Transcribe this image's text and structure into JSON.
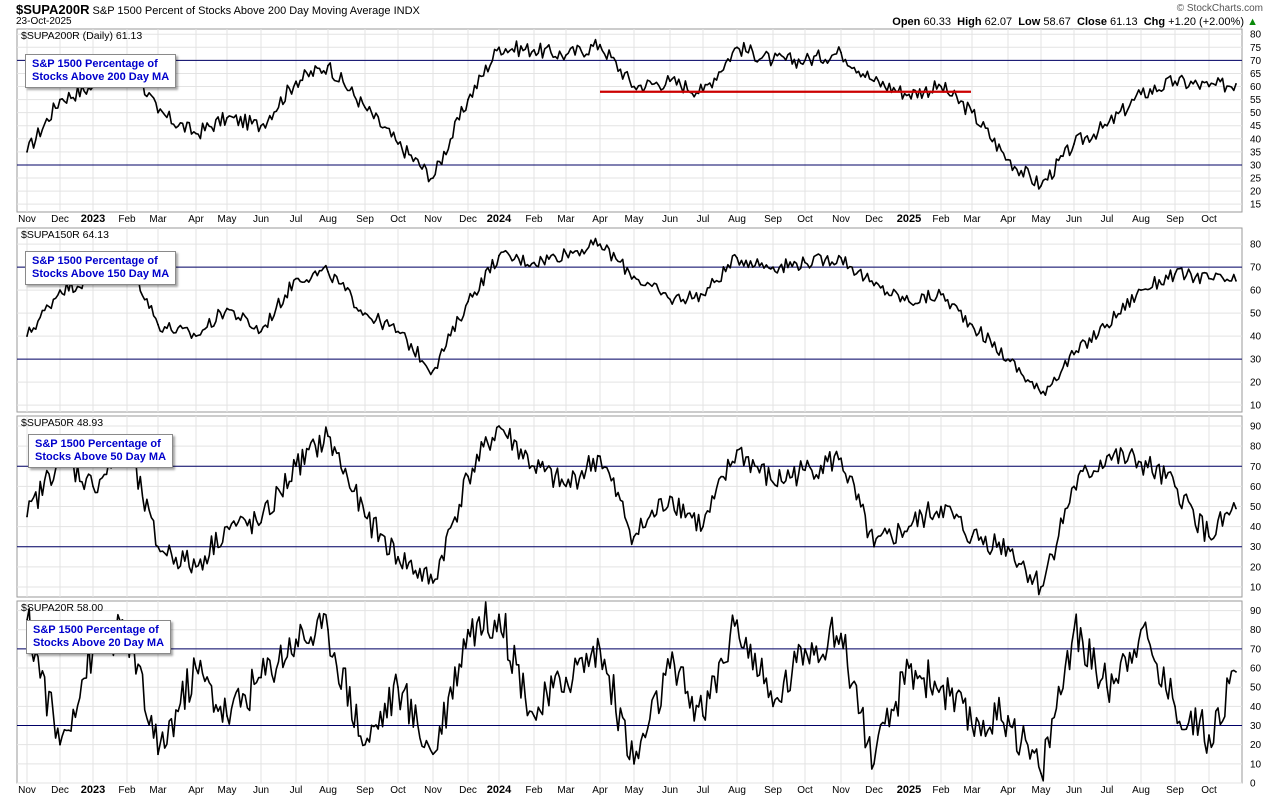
{
  "header": {
    "symbol": "$SUPA200R",
    "description": "S&P 1500 Percent of Stocks Above 200 Day Moving Average",
    "exchange": "INDX",
    "date": "23-Oct-2025",
    "watermark": "© StockCharts.com",
    "open_label": "Open",
    "open": "60.33",
    "high_label": "High",
    "high": "62.07",
    "low_label": "Low",
    "low": "58.67",
    "close_label": "Close",
    "close": "61.13",
    "chg_label": "Chg",
    "chg": "+1.20 (+2.00%)",
    "chg_arrow": "▲"
  },
  "colors": {
    "line": "#000000",
    "reference": "#000066",
    "support": "#cc0000",
    "grid": "#e3e3e3",
    "legend_text": "#0000cc"
  },
  "x_axis_labels": [
    "Nov",
    "Dec",
    "2023",
    "Feb",
    "Mar",
    "Apr",
    "May",
    "Jun",
    "Jul",
    "Aug",
    "Sep",
    "Oct",
    "Nov",
    "Dec",
    "2024",
    "Feb",
    "Mar",
    "Apr",
    "May",
    "Jun",
    "Jul",
    "Aug",
    "Sep",
    "Oct",
    "Nov",
    "Dec",
    "2025",
    "Feb",
    "Mar",
    "Apr",
    "May",
    "Jun",
    "Jul",
    "Aug",
    "Sep",
    "Oct"
  ],
  "chart_data": [
    {
      "type": "line",
      "title": "$SUPA200R (Daily) 61.13",
      "legend": [
        "S&P 1500 Percentage of",
        "Stocks Above 200 Day MA"
      ],
      "ylim": [
        12,
        82
      ],
      "yticks": [
        15,
        20,
        25,
        30,
        35,
        40,
        45,
        50,
        55,
        60,
        65,
        70,
        75,
        80
      ],
      "reference_lines": [
        30,
        70
      ],
      "support_line": {
        "from": "Apr 2024",
        "to": "Feb 2025",
        "value": 58
      },
      "x": [
        "Nov 2022",
        "Dec 2022",
        "Jan 2023",
        "Feb 2023",
        "Mar 2023",
        "Apr 2023",
        "May 2023",
        "Jun 2023",
        "Jul 2023",
        "Aug 2023",
        "Sep 2023",
        "Oct 2023",
        "Nov 2023",
        "Dec 2023",
        "Jan 2024",
        "Feb 2024",
        "Mar 2024",
        "Apr 2024",
        "May 2024",
        "Jun 2024",
        "Jul 2024",
        "Aug 2024",
        "Sep 2024",
        "Oct 2024",
        "Nov 2024",
        "Dec 2024",
        "Jan 2025",
        "Feb 2025",
        "Mar 2025",
        "Apr 2025",
        "May 2025",
        "Jun 2025",
        "Jul 2025",
        "Aug 2025",
        "Sep 2025",
        "Oct 2025",
        "23 Oct 2025"
      ],
      "values": [
        35,
        55,
        60,
        72,
        50,
        42,
        48,
        45,
        62,
        68,
        52,
        38,
        25,
        55,
        75,
        74,
        72,
        76,
        60,
        62,
        58,
        75,
        70,
        70,
        73,
        62,
        57,
        60,
        50,
        32,
        22,
        38,
        45,
        57,
        62,
        60,
        61
      ]
    },
    {
      "type": "line",
      "title": "$SUPA150R 64.13",
      "legend": [
        "S&P 1500 Percentage of",
        "Stocks Above 150 Day MA"
      ],
      "ylim": [
        7,
        87
      ],
      "yticks": [
        10,
        20,
        30,
        40,
        50,
        60,
        70,
        80
      ],
      "reference_lines": [
        30,
        70
      ],
      "x": [
        "Nov 2022",
        "Dec 2022",
        "Jan 2023",
        "Feb 2023",
        "Mar 2023",
        "Apr 2023",
        "May 2023",
        "Jun 2023",
        "Jul 2023",
        "Aug 2023",
        "Sep 2023",
        "Oct 2023",
        "Nov 2023",
        "Dec 2023",
        "Jan 2024",
        "Feb 2024",
        "Mar 2024",
        "Apr 2024",
        "May 2024",
        "Jun 2024",
        "Jul 2024",
        "Aug 2024",
        "Sep 2024",
        "Oct 2024",
        "Nov 2024",
        "Dec 2024",
        "Jan 2025",
        "Feb 2025",
        "Mar 2025",
        "Apr 2025",
        "May 2025",
        "Jun 2025",
        "Jul 2025",
        "Aug 2025",
        "Sep 2025",
        "Oct 2025",
        "23 Oct 2025"
      ],
      "values": [
        40,
        60,
        65,
        75,
        45,
        40,
        52,
        42,
        65,
        68,
        50,
        42,
        25,
        55,
        75,
        72,
        76,
        80,
        66,
        56,
        58,
        74,
        70,
        72,
        74,
        62,
        55,
        58,
        45,
        30,
        15,
        32,
        45,
        60,
        67,
        65,
        64
      ]
    },
    {
      "type": "line",
      "title": "$SUPA50R 48.93",
      "legend": [
        "S&P 1500 Percentage of",
        "Stocks Above 50 Day MA"
      ],
      "ylim": [
        5,
        95
      ],
      "yticks": [
        10,
        20,
        30,
        40,
        50,
        60,
        70,
        80,
        90
      ],
      "reference_lines": [
        30,
        70
      ],
      "x": [
        "Nov 2022",
        "Dec 2022",
        "Jan 2023",
        "Feb 2023",
        "Mar 2023",
        "Apr 2023",
        "May 2023",
        "Jun 2023",
        "Jul 2023",
        "Aug 2023",
        "Sep 2023",
        "Oct 2023",
        "Nov 2023",
        "Dec 2023",
        "Jan 2024",
        "Feb 2024",
        "Mar 2024",
        "Apr 2024",
        "May 2024",
        "Jun 2024",
        "Jul 2024",
        "Aug 2024",
        "Sep 2024",
        "Oct 2024",
        "Nov 2024",
        "Dec 2024",
        "Jan 2025",
        "Feb 2025",
        "Mar 2025",
        "Apr 2025",
        "May 2025",
        "Jun 2025",
        "Jul 2025",
        "Aug 2025",
        "Sep 2025",
        "Oct 2025",
        "23 Oct 2025"
      ],
      "values": [
        45,
        75,
        60,
        80,
        30,
        20,
        40,
        42,
        70,
        85,
        45,
        25,
        12,
        65,
        90,
        70,
        60,
        75,
        35,
        55,
        40,
        78,
        62,
        68,
        74,
        30,
        40,
        50,
        35,
        30,
        10,
        60,
        75,
        72,
        60,
        35,
        49
      ]
    },
    {
      "type": "line",
      "title": "$SUPA20R 58.00",
      "legend": [
        "S&P 1500 Percentage of",
        "Stocks Above 20 Day MA"
      ],
      "ylim": [
        0,
        95
      ],
      "yticks": [
        0,
        10,
        20,
        30,
        40,
        50,
        60,
        70,
        80,
        90
      ],
      "reference_lines": [
        30,
        70
      ],
      "x": [
        "Nov 2022",
        "Dec 2022",
        "Jan 2023",
        "Feb 2023",
        "Mar 2023",
        "Apr 2023",
        "May 2023",
        "Jun 2023",
        "Jul 2023",
        "Aug 2023",
        "Sep 2023",
        "Oct 2023",
        "Nov 2023",
        "Dec 2023",
        "Jan 2024",
        "Feb 2024",
        "Mar 2024",
        "Apr 2024",
        "May 2024",
        "Jun 2024",
        "Jul 2024",
        "Aug 2024",
        "Sep 2024",
        "Oct 2024",
        "Nov 2024",
        "Dec 2024",
        "Jan 2025",
        "Feb 2025",
        "Mar 2025",
        "Apr 2025",
        "May 2025",
        "Jun 2025",
        "Jul 2025",
        "Aug 2025",
        "Sep 2025",
        "Oct 2025",
        "23 Oct 2025"
      ],
      "values": [
        85,
        20,
        70,
        80,
        15,
        60,
        35,
        55,
        75,
        80,
        20,
        50,
        15,
        80,
        88,
        35,
        55,
        70,
        10,
        60,
        35,
        85,
        40,
        70,
        78,
        10,
        60,
        50,
        30,
        35,
        5,
        80,
        50,
        80,
        40,
        25,
        58
      ]
    }
  ]
}
